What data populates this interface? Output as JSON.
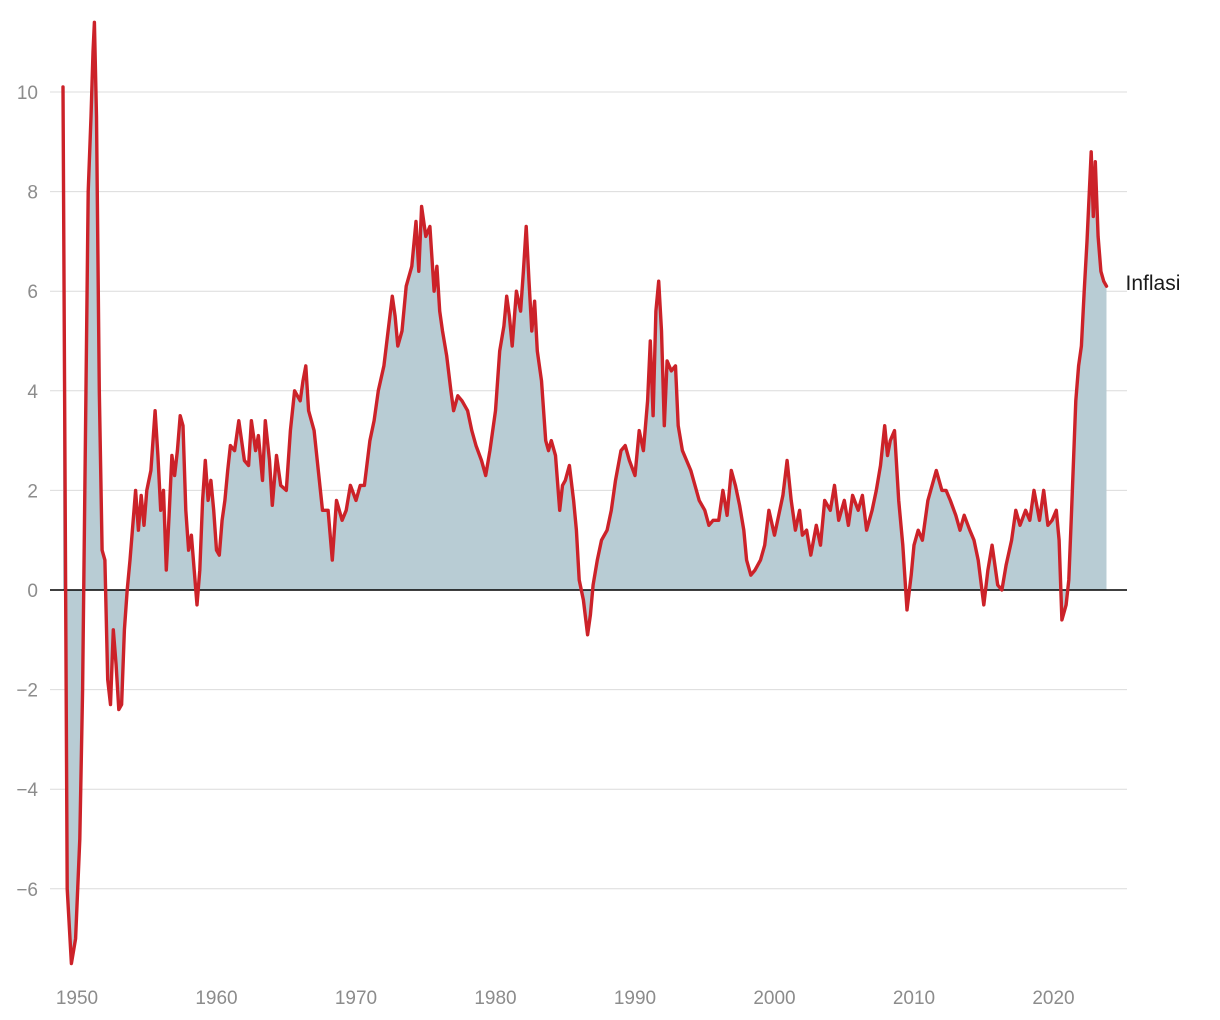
{
  "chart_data": {
    "type": "area",
    "title": "",
    "xlabel": "",
    "ylabel": "",
    "xlim": [
      1949.5,
      2025.3
    ],
    "ylim": [
      -7.6,
      11.4
    ],
    "x_ticks": [
      1950,
      1960,
      1970,
      1980,
      1990,
      2000,
      2010,
      2020
    ],
    "x_tick_labels": [
      "1950",
      "1960",
      "1970",
      "1980",
      "1990",
      "2000",
      "2010",
      "2020"
    ],
    "y_ticks": [
      10,
      8,
      6,
      4,
      2,
      0,
      -2,
      -4,
      -6
    ],
    "y_tick_labels": [
      "10",
      "8",
      "6",
      "4",
      "2",
      "0",
      "−2",
      "−4",
      "−6"
    ],
    "grid": true,
    "legend": "none",
    "colors": {
      "line": "#cc2229",
      "area": "#b8ccd4",
      "grid": "#dcdcdc",
      "zero": "#000000",
      "ticks": "#8c8c8c"
    },
    "series": [
      {
        "name": "Inflasi",
        "points": [
          [
            1949.0,
            10.1
          ],
          [
            1949.3,
            -6.0
          ],
          [
            1949.6,
            -7.5
          ],
          [
            1949.9,
            -7.0
          ],
          [
            1950.2,
            -5.0
          ],
          [
            1950.4,
            -2.0
          ],
          [
            1950.6,
            3.0
          ],
          [
            1950.8,
            8.0
          ],
          [
            1951.0,
            9.5
          ],
          [
            1951.15,
            10.8
          ],
          [
            1951.25,
            11.4
          ],
          [
            1951.4,
            9.5
          ],
          [
            1951.6,
            4.0
          ],
          [
            1951.8,
            0.8
          ],
          [
            1952.0,
            0.6
          ],
          [
            1952.2,
            -1.8
          ],
          [
            1952.4,
            -2.3
          ],
          [
            1952.6,
            -0.8
          ],
          [
            1952.8,
            -1.5
          ],
          [
            1953.0,
            -2.4
          ],
          [
            1953.2,
            -2.3
          ],
          [
            1953.4,
            -0.8
          ],
          [
            1953.6,
            0.0
          ],
          [
            1953.8,
            0.6
          ],
          [
            1954.0,
            1.3
          ],
          [
            1954.2,
            2.0
          ],
          [
            1954.4,
            1.2
          ],
          [
            1954.6,
            1.9
          ],
          [
            1954.8,
            1.3
          ],
          [
            1955.0,
            2.0
          ],
          [
            1955.3,
            2.4
          ],
          [
            1955.6,
            3.6
          ],
          [
            1955.8,
            2.7
          ],
          [
            1956.0,
            1.6
          ],
          [
            1956.2,
            2.0
          ],
          [
            1956.4,
            0.4
          ],
          [
            1956.6,
            1.5
          ],
          [
            1956.8,
            2.7
          ],
          [
            1957.0,
            2.3
          ],
          [
            1957.2,
            2.8
          ],
          [
            1957.4,
            3.5
          ],
          [
            1957.6,
            3.3
          ],
          [
            1957.8,
            1.6
          ],
          [
            1958.0,
            0.8
          ],
          [
            1958.2,
            1.1
          ],
          [
            1958.4,
            0.4
          ],
          [
            1958.6,
            -0.3
          ],
          [
            1958.8,
            0.4
          ],
          [
            1959.0,
            1.8
          ],
          [
            1959.2,
            2.6
          ],
          [
            1959.4,
            1.8
          ],
          [
            1959.6,
            2.2
          ],
          [
            1959.8,
            1.6
          ],
          [
            1960.0,
            0.8
          ],
          [
            1960.2,
            0.7
          ],
          [
            1960.4,
            1.4
          ],
          [
            1960.6,
            1.8
          ],
          [
            1960.8,
            2.4
          ],
          [
            1961.0,
            2.9
          ],
          [
            1961.3,
            2.8
          ],
          [
            1961.6,
            3.4
          ],
          [
            1962.0,
            2.6
          ],
          [
            1962.3,
            2.5
          ],
          [
            1962.5,
            3.4
          ],
          [
            1962.8,
            2.8
          ],
          [
            1963.0,
            3.1
          ],
          [
            1963.3,
            2.2
          ],
          [
            1963.5,
            3.4
          ],
          [
            1963.8,
            2.6
          ],
          [
            1964.0,
            1.7
          ],
          [
            1964.3,
            2.7
          ],
          [
            1964.6,
            2.1
          ],
          [
            1965.0,
            2.0
          ],
          [
            1965.3,
            3.2
          ],
          [
            1965.6,
            4.0
          ],
          [
            1966.0,
            3.8
          ],
          [
            1966.2,
            4.2
          ],
          [
            1966.4,
            4.5
          ],
          [
            1966.6,
            3.6
          ],
          [
            1967.0,
            3.2
          ],
          [
            1967.3,
            2.4
          ],
          [
            1967.6,
            1.6
          ],
          [
            1968.0,
            1.6
          ],
          [
            1968.3,
            0.6
          ],
          [
            1968.6,
            1.8
          ],
          [
            1969.0,
            1.4
          ],
          [
            1969.3,
            1.6
          ],
          [
            1969.6,
            2.1
          ],
          [
            1970.0,
            1.8
          ],
          [
            1970.3,
            2.1
          ],
          [
            1970.6,
            2.1
          ],
          [
            1971.0,
            3.0
          ],
          [
            1971.3,
            3.4
          ],
          [
            1971.6,
            4.0
          ],
          [
            1972.0,
            4.5
          ],
          [
            1972.3,
            5.2
          ],
          [
            1972.6,
            5.9
          ],
          [
            1972.8,
            5.5
          ],
          [
            1973.0,
            4.9
          ],
          [
            1973.3,
            5.2
          ],
          [
            1973.6,
            6.1
          ],
          [
            1974.0,
            6.5
          ],
          [
            1974.3,
            7.4
          ],
          [
            1974.5,
            6.4
          ],
          [
            1974.7,
            7.7
          ],
          [
            1975.0,
            7.1
          ],
          [
            1975.3,
            7.3
          ],
          [
            1975.6,
            6.0
          ],
          [
            1975.8,
            6.5
          ],
          [
            1976.0,
            5.6
          ],
          [
            1976.2,
            5.2
          ],
          [
            1976.5,
            4.7
          ],
          [
            1976.8,
            4.0
          ],
          [
            1977.0,
            3.6
          ],
          [
            1977.3,
            3.9
          ],
          [
            1977.6,
            3.8
          ],
          [
            1978.0,
            3.6
          ],
          [
            1978.3,
            3.2
          ],
          [
            1978.6,
            2.9
          ],
          [
            1979.0,
            2.6
          ],
          [
            1979.3,
            2.3
          ],
          [
            1979.6,
            2.8
          ],
          [
            1980.0,
            3.6
          ],
          [
            1980.3,
            4.8
          ],
          [
            1980.6,
            5.3
          ],
          [
            1980.8,
            5.9
          ],
          [
            1981.0,
            5.5
          ],
          [
            1981.2,
            4.9
          ],
          [
            1981.5,
            6.0
          ],
          [
            1981.8,
            5.6
          ],
          [
            1982.0,
            6.4
          ],
          [
            1982.2,
            7.3
          ],
          [
            1982.4,
            6.2
          ],
          [
            1982.6,
            5.2
          ],
          [
            1982.8,
            5.8
          ],
          [
            1983.0,
            4.8
          ],
          [
            1983.3,
            4.2
          ],
          [
            1983.6,
            3.0
          ],
          [
            1983.8,
            2.8
          ],
          [
            1984.0,
            3.0
          ],
          [
            1984.3,
            2.7
          ],
          [
            1984.6,
            1.6
          ],
          [
            1984.8,
            2.1
          ],
          [
            1985.0,
            2.2
          ],
          [
            1985.3,
            2.5
          ],
          [
            1985.6,
            1.8
          ],
          [
            1985.8,
            1.2
          ],
          [
            1986.0,
            0.2
          ],
          [
            1986.3,
            -0.2
          ],
          [
            1986.6,
            -0.9
          ],
          [
            1986.8,
            -0.5
          ],
          [
            1987.0,
            0.1
          ],
          [
            1987.3,
            0.6
          ],
          [
            1987.6,
            1.0
          ],
          [
            1988.0,
            1.2
          ],
          [
            1988.3,
            1.6
          ],
          [
            1988.6,
            2.2
          ],
          [
            1989.0,
            2.8
          ],
          [
            1989.3,
            2.9
          ],
          [
            1989.6,
            2.6
          ],
          [
            1990.0,
            2.3
          ],
          [
            1990.3,
            3.2
          ],
          [
            1990.6,
            2.8
          ],
          [
            1990.9,
            3.8
          ],
          [
            1991.1,
            5.0
          ],
          [
            1991.3,
            3.5
          ],
          [
            1991.5,
            5.6
          ],
          [
            1991.7,
            6.2
          ],
          [
            1991.9,
            5.2
          ],
          [
            1992.1,
            3.3
          ],
          [
            1992.3,
            4.6
          ],
          [
            1992.6,
            4.4
          ],
          [
            1992.9,
            4.5
          ],
          [
            1993.1,
            3.3
          ],
          [
            1993.4,
            2.8
          ],
          [
            1993.7,
            2.6
          ],
          [
            1994.0,
            2.4
          ],
          [
            1994.3,
            2.1
          ],
          [
            1994.6,
            1.8
          ],
          [
            1995.0,
            1.6
          ],
          [
            1995.3,
            1.3
          ],
          [
            1995.6,
            1.4
          ],
          [
            1996.0,
            1.4
          ],
          [
            1996.3,
            2.0
          ],
          [
            1996.6,
            1.5
          ],
          [
            1996.9,
            2.4
          ],
          [
            1997.2,
            2.1
          ],
          [
            1997.5,
            1.7
          ],
          [
            1997.8,
            1.2
          ],
          [
            1998.0,
            0.6
          ],
          [
            1998.3,
            0.3
          ],
          [
            1998.6,
            0.4
          ],
          [
            1999.0,
            0.6
          ],
          [
            1999.3,
            0.9
          ],
          [
            1999.6,
            1.6
          ],
          [
            2000.0,
            1.1
          ],
          [
            2000.3,
            1.5
          ],
          [
            2000.6,
            1.9
          ],
          [
            2000.9,
            2.6
          ],
          [
            2001.2,
            1.8
          ],
          [
            2001.5,
            1.2
          ],
          [
            2001.8,
            1.6
          ],
          [
            2002.0,
            1.1
          ],
          [
            2002.3,
            1.2
          ],
          [
            2002.6,
            0.7
          ],
          [
            2003.0,
            1.3
          ],
          [
            2003.3,
            0.9
          ],
          [
            2003.6,
            1.8
          ],
          [
            2004.0,
            1.6
          ],
          [
            2004.3,
            2.1
          ],
          [
            2004.6,
            1.4
          ],
          [
            2005.0,
            1.8
          ],
          [
            2005.3,
            1.3
          ],
          [
            2005.6,
            1.9
          ],
          [
            2006.0,
            1.6
          ],
          [
            2006.3,
            1.9
          ],
          [
            2006.6,
            1.2
          ],
          [
            2007.0,
            1.6
          ],
          [
            2007.3,
            2.0
          ],
          [
            2007.6,
            2.5
          ],
          [
            2007.9,
            3.3
          ],
          [
            2008.1,
            2.7
          ],
          [
            2008.3,
            3.0
          ],
          [
            2008.6,
            3.2
          ],
          [
            2008.9,
            1.8
          ],
          [
            2009.2,
            0.9
          ],
          [
            2009.5,
            -0.4
          ],
          [
            2009.8,
            0.3
          ],
          [
            2010.0,
            0.9
          ],
          [
            2010.3,
            1.2
          ],
          [
            2010.6,
            1.0
          ],
          [
            2011.0,
            1.8
          ],
          [
            2011.3,
            2.1
          ],
          [
            2011.6,
            2.4
          ],
          [
            2012.0,
            2.0
          ],
          [
            2012.3,
            2.0
          ],
          [
            2012.6,
            1.8
          ],
          [
            2013.0,
            1.5
          ],
          [
            2013.3,
            1.2
          ],
          [
            2013.6,
            1.5
          ],
          [
            2014.0,
            1.2
          ],
          [
            2014.3,
            1.0
          ],
          [
            2014.6,
            0.6
          ],
          [
            2015.0,
            -0.3
          ],
          [
            2015.3,
            0.4
          ],
          [
            2015.6,
            0.9
          ],
          [
            2016.0,
            0.1
          ],
          [
            2016.3,
            0.0
          ],
          [
            2016.6,
            0.5
          ],
          [
            2017.0,
            1.0
          ],
          [
            2017.3,
            1.6
          ],
          [
            2017.6,
            1.3
          ],
          [
            2018.0,
            1.6
          ],
          [
            2018.3,
            1.4
          ],
          [
            2018.6,
            2.0
          ],
          [
            2019.0,
            1.4
          ],
          [
            2019.3,
            2.0
          ],
          [
            2019.6,
            1.3
          ],
          [
            2019.9,
            1.4
          ],
          [
            2020.2,
            1.6
          ],
          [
            2020.4,
            1.0
          ],
          [
            2020.6,
            -0.6
          ],
          [
            2020.9,
            -0.3
          ],
          [
            2021.1,
            0.2
          ],
          [
            2021.3,
            1.6
          ],
          [
            2021.6,
            3.8
          ],
          [
            2021.8,
            4.5
          ],
          [
            2022.0,
            4.9
          ],
          [
            2022.2,
            6.0
          ],
          [
            2022.4,
            7.0
          ],
          [
            2022.6,
            8.2
          ],
          [
            2022.7,
            8.8
          ],
          [
            2022.85,
            7.5
          ],
          [
            2023.0,
            8.6
          ],
          [
            2023.2,
            7.1
          ],
          [
            2023.4,
            6.4
          ],
          [
            2023.6,
            6.2
          ],
          [
            2023.8,
            6.1
          ]
        ]
      }
    ],
    "annotations": [
      {
        "text": "Inflasi",
        "target": "series-end"
      }
    ]
  }
}
